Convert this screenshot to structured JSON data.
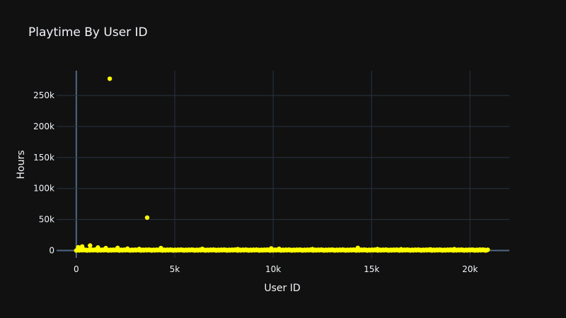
{
  "chart_data": {
    "type": "scatter",
    "title": "Playtime By User ID",
    "xlabel": "User ID",
    "ylabel": "Hours",
    "xlim": [
      -1000,
      22000
    ],
    "ylim": [
      -12000,
      290000
    ],
    "x_ticks": [
      0,
      5000,
      10000,
      15000,
      20000
    ],
    "x_tick_labels": [
      "0",
      "5k",
      "10k",
      "15k",
      "20k"
    ],
    "y_ticks": [
      0,
      50000,
      100000,
      150000,
      200000,
      250000
    ],
    "y_tick_labels": [
      "0",
      "50k",
      "100k",
      "150k",
      "200k",
      "250k"
    ],
    "grid": true,
    "colors": {
      "background": "#111111",
      "marker": "#ffff00",
      "grid": "#283442",
      "zero_line": "#506784",
      "text": "#f2f5fa"
    },
    "points": [
      {
        "x": 1700,
        "y": 277000
      },
      {
        "x": 3600,
        "y": 53000
      },
      {
        "x": 700,
        "y": 8000
      },
      {
        "x": 300,
        "y": 6500
      },
      {
        "x": 100,
        "y": 5200
      },
      {
        "x": 1100,
        "y": 4800
      },
      {
        "x": 2100,
        "y": 4200
      },
      {
        "x": 1500,
        "y": 3800
      },
      {
        "x": 4300,
        "y": 3900
      },
      {
        "x": 14300,
        "y": 4200
      },
      {
        "x": 9900,
        "y": 3300
      },
      {
        "x": 10300,
        "y": 2800
      },
      {
        "x": 6400,
        "y": 2600
      },
      {
        "x": 2600,
        "y": 3000
      },
      {
        "x": 3200,
        "y": 2500
      },
      {
        "x": 8200,
        "y": 2200
      },
      {
        "x": 12000,
        "y": 2100
      },
      {
        "x": 15300,
        "y": 2300
      },
      {
        "x": 16500,
        "y": 2000
      },
      {
        "x": 18000,
        "y": 1800
      },
      {
        "x": 19200,
        "y": 2200
      },
      {
        "x": 20500,
        "y": 1500
      }
    ],
    "dense_band": {
      "x_range": [
        0,
        20900
      ],
      "y_range": [
        0,
        1500
      ]
    }
  }
}
